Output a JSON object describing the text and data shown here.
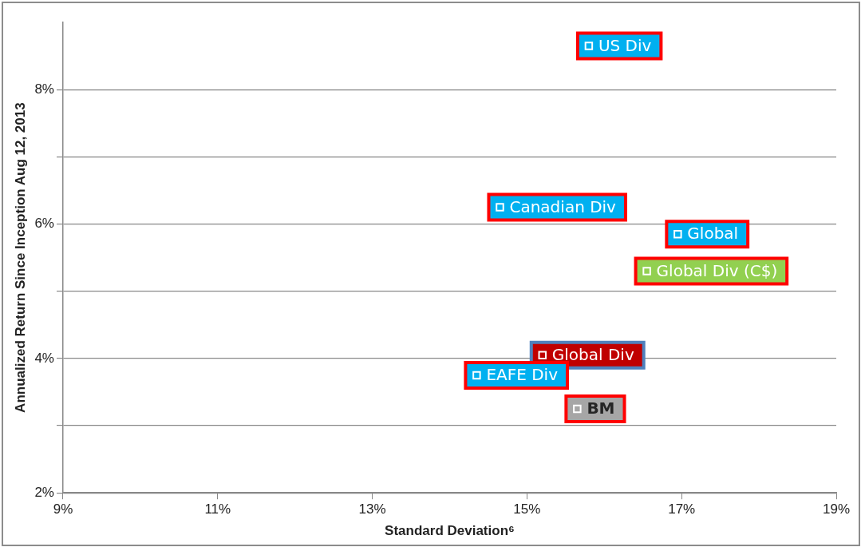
{
  "chart_data": {
    "type": "scatter",
    "xlabel": "Standard Deviation⁶",
    "ylabel": "Annualized Return Since Inception Aug 12, 2013",
    "xlim": [
      9,
      19
    ],
    "xticks": [
      {
        "value": 9,
        "label": "9%"
      },
      {
        "value": 11,
        "label": "11%"
      },
      {
        "value": 13,
        "label": "13%"
      },
      {
        "value": 15,
        "label": "15%"
      },
      {
        "value": 17,
        "label": "17%"
      },
      {
        "value": 19,
        "label": "19%"
      }
    ],
    "ylim": [
      2,
      9
    ],
    "yticks": [
      {
        "value": 2,
        "label": "2%"
      },
      {
        "value": 3,
        "label": null
      },
      {
        "value": 4,
        "label": "4%"
      },
      {
        "value": 5,
        "label": null
      },
      {
        "value": 6,
        "label": "6%"
      },
      {
        "value": 7,
        "label": null
      },
      {
        "value": 8,
        "label": "8%"
      }
    ],
    "grid": "y",
    "marker": "square",
    "series": [
      {
        "name": "US Div",
        "color": "#00b0f0",
        "x": [
          15.8
        ],
        "values": [
          8.65
        ]
      },
      {
        "name": "Canadian Div",
        "color": "#00b0f0",
        "x": [
          14.65
        ],
        "values": [
          6.25
        ]
      },
      {
        "name": "Global",
        "color": "#00b0f0",
        "x": [
          16.95
        ],
        "values": [
          5.85
        ]
      },
      {
        "name": "Global Div (C$)",
        "color": "#92d050",
        "x": [
          16.55
        ],
        "values": [
          5.3
        ]
      },
      {
        "name": "Global Div",
        "color": "#c00000",
        "x": [
          15.2
        ],
        "values": [
          4.05
        ]
      },
      {
        "name": "EAFE Div",
        "color": "#00b0f0",
        "x": [
          14.35
        ],
        "values": [
          3.75
        ]
      },
      {
        "name": "BM",
        "color": "#a6a6a6",
        "x": [
          15.65
        ],
        "values": [
          3.25
        ]
      }
    ]
  }
}
